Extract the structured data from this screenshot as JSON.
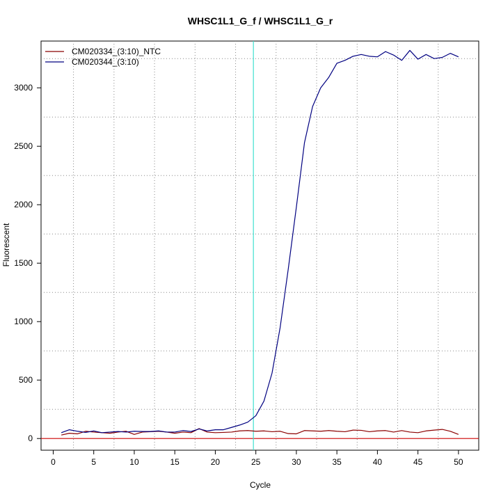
{
  "chart_data": {
    "type": "line",
    "title": "WHSC1L1_G_f / WHSC1L1_G_r",
    "xlabel": "Cycle",
    "ylabel": "Fluorescent",
    "xlim": [
      -1.5,
      52.5
    ],
    "ylim": [
      -100,
      3400
    ],
    "x_ticks": [
      0,
      5,
      10,
      15,
      20,
      25,
      30,
      35,
      40,
      45,
      50
    ],
    "x_tick_labels": [
      "0",
      "5",
      "10",
      "15",
      "20",
      "25",
      "30",
      "35",
      "40",
      "45",
      "50"
    ],
    "y_ticks": [
      0,
      500,
      1000,
      1500,
      2000,
      2500,
      3000
    ],
    "y_tick_labels": [
      "0",
      "500",
      "1000",
      "1500",
      "2000",
      "2500",
      "3000"
    ],
    "grid": true,
    "grid_style": "dotted",
    "legend_position": "top-left",
    "threshold_vertical_x": 24.7,
    "threshold_vertical_color": "#40e0d0",
    "baseline_y": 0,
    "baseline_color": "#cc0000",
    "x": [
      1,
      2,
      3,
      4,
      5,
      6,
      7,
      8,
      9,
      10,
      11,
      12,
      13,
      14,
      15,
      16,
      17,
      18,
      19,
      20,
      21,
      22,
      23,
      24,
      25,
      26,
      27,
      28,
      29,
      30,
      31,
      32,
      33,
      34,
      35,
      36,
      37,
      38,
      39,
      40,
      41,
      42,
      43,
      44,
      45,
      46,
      47,
      48,
      49,
      50
    ],
    "series": [
      {
        "name": "CM020334_(3:10)_NTC",
        "color": "#8b0000",
        "values": [
          30,
          45,
          40,
          62,
          55,
          50,
          45,
          55,
          62,
          35,
          55,
          58,
          62,
          55,
          45,
          55,
          50,
          85,
          55,
          50,
          52,
          55,
          65,
          68,
          62,
          65,
          58,
          62,
          42,
          40,
          68,
          65,
          62,
          68,
          62,
          58,
          72,
          70,
          58,
          65,
          68,
          55,
          68,
          55,
          50,
          65,
          72,
          78,
          62,
          35
        ]
      },
      {
        "name": "CM020344_(3:10)",
        "color": "#000080",
        "values": [
          50,
          75,
          62,
          52,
          65,
          50,
          55,
          60,
          55,
          62,
          60,
          60,
          65,
          55,
          55,
          68,
          60,
          82,
          65,
          75,
          75,
          95,
          115,
          140,
          195,
          320,
          560,
          950,
          1450,
          1980,
          2530,
          2840,
          3000,
          3090,
          3210,
          3235,
          3270,
          3285,
          3270,
          3265,
          3310,
          3280,
          3235,
          3320,
          3245,
          3285,
          3250,
          3260,
          3295,
          3265
        ]
      }
    ]
  }
}
